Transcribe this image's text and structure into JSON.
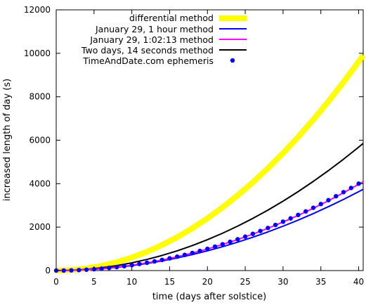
{
  "chart_data": {
    "type": "line",
    "title": "",
    "xlabel": "time (days after solstice)",
    "ylabel": "increased length of day (s)",
    "xlim": [
      0,
      40.6
    ],
    "ylim": [
      0,
      12000
    ],
    "x_ticks": [
      0,
      5,
      10,
      15,
      20,
      25,
      30,
      35,
      40
    ],
    "y_ticks": [
      0,
      2000,
      4000,
      6000,
      8000,
      10000,
      12000
    ],
    "legend_position": "top-right",
    "grid": false,
    "series": [
      {
        "name": "differential method",
        "style": "line",
        "color": "#ffff00",
        "x": [
          0,
          2,
          4,
          6,
          8,
          10,
          12,
          14,
          16,
          18,
          20,
          22,
          24,
          26,
          28,
          30,
          32,
          34,
          36,
          38,
          40,
          40.6
        ],
        "y": [
          0,
          24,
          96,
          216,
          385,
          601,
          866,
          1178,
          1539,
          1948,
          2405,
          2910,
          3463,
          4064,
          4713,
          5411,
          6156,
          6949,
          7791,
          8680,
          9618,
          9909
        ]
      },
      {
        "name": "January 29, 1 hour method",
        "style": "line",
        "color": "#0000ff",
        "x": [
          0,
          2,
          4,
          6,
          8,
          10,
          12,
          14,
          16,
          18,
          20,
          22,
          24,
          26,
          28,
          30,
          32,
          34,
          36,
          38,
          40,
          40.6
        ],
        "y": [
          0,
          9,
          36,
          82,
          145,
          227,
          327,
          445,
          581,
          735,
          908,
          1098,
          1307,
          1534,
          1779,
          2042,
          2323,
          2623,
          2941,
          3276,
          3630,
          3740
        ]
      },
      {
        "name": "January 29, 1:02:13 method",
        "style": "line",
        "color": "#ff00ff",
        "x": [
          0,
          2,
          4,
          6,
          8,
          10,
          12,
          14,
          16,
          18,
          20,
          22,
          24,
          26,
          28,
          30,
          32,
          34,
          36,
          38,
          40,
          40.6
        ],
        "y": [
          0,
          10,
          40,
          89,
          159,
          248,
          357,
          486,
          635,
          804,
          992,
          1201,
          1429,
          1677,
          1945,
          2233,
          2540,
          2868,
          3215,
          3582,
          3969,
          4089
        ]
      },
      {
        "name": "Two days, 14 seconds method",
        "style": "line",
        "color": "#000000",
        "x": [
          0,
          2,
          4,
          6,
          8,
          10,
          12,
          14,
          16,
          18,
          20,
          22,
          24,
          26,
          28,
          30,
          32,
          34,
          36,
          38,
          40,
          40.6
        ],
        "y": [
          0,
          14,
          57,
          128,
          227,
          355,
          511,
          696,
          909,
          1150,
          1420,
          1718,
          2045,
          2400,
          2783,
          3195,
          3635,
          4104,
          4601,
          5126,
          5680,
          5852
        ]
      },
      {
        "name": "TimeAndDate.com ephemeris",
        "style": "points",
        "color": "#0000ff",
        "x": [
          0,
          1,
          2,
          3,
          4,
          5,
          6,
          7,
          8,
          9,
          10,
          11,
          12,
          13,
          14,
          15,
          16,
          17,
          18,
          19,
          20,
          21,
          22,
          23,
          24,
          25,
          26,
          27,
          28,
          29,
          30,
          31,
          32,
          33,
          34,
          35,
          36,
          37,
          38,
          39,
          40
        ],
        "y": [
          0,
          2,
          10,
          22,
          40,
          62,
          90,
          122,
          160,
          202,
          250,
          302,
          360,
          422,
          490,
          562,
          640,
          722,
          810,
          902,
          1000,
          1102,
          1210,
          1322,
          1440,
          1562,
          1690,
          1822,
          1960,
          2102,
          2250,
          2402,
          2560,
          2722,
          2890,
          3062,
          3240,
          3422,
          3610,
          3802,
          4000
        ]
      }
    ]
  }
}
